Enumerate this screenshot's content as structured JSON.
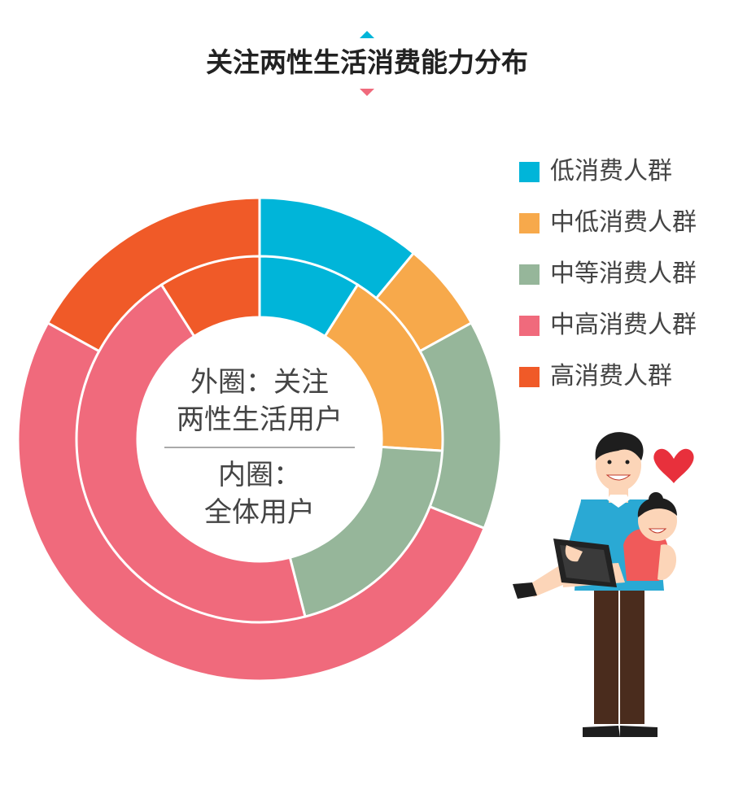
{
  "title": "关注两性生活消费能力分布",
  "center": {
    "outer_label_line1": "外圈：关注",
    "outer_label_line2": "两性生活用户",
    "inner_label_line1": "内圈：",
    "inner_label_line2": "全体用户"
  },
  "legend": [
    {
      "label": "低消费人群",
      "color": "#00b5d9"
    },
    {
      "label": "中低消费人群",
      "color": "#f7a94b"
    },
    {
      "label": "中等消费人群",
      "color": "#96b69a"
    },
    {
      "label": "中高消费人群",
      "color": "#f06a7c"
    },
    {
      "label": "高消费人群",
      "color": "#f05a28"
    }
  ],
  "chart_data": {
    "type": "donut",
    "categories": [
      "低消费人群",
      "中低消费人群",
      "中等消费人群",
      "中高消费人群",
      "高消费人群"
    ],
    "colors": [
      "#00b5d9",
      "#f7a94b",
      "#96b69a",
      "#f06a7c",
      "#f05a28"
    ],
    "series": [
      {
        "values": [
          11,
          6,
          14,
          52,
          17
        ]
      },
      {
        "values": [
          9,
          17,
          20,
          45,
          9
        ]
      }
    ]
  },
  "illustration": {
    "icons": [
      "heart-icon",
      "man-figure",
      "woman-figure",
      "laptop-icon"
    ]
  }
}
